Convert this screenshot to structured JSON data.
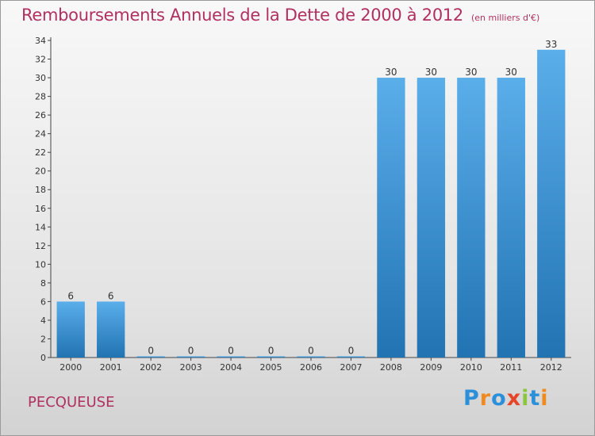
{
  "chart_data": {
    "type": "bar",
    "title": "Remboursements Annuels de la Dette de 2000 à 2012",
    "subtitle": "(en milliers d'€)",
    "categories": [
      "2000",
      "2001",
      "2002",
      "2003",
      "2004",
      "2005",
      "2006",
      "2007",
      "2008",
      "2009",
      "2010",
      "2011",
      "2012"
    ],
    "values": [
      6,
      6,
      0,
      0,
      0,
      0,
      0,
      0,
      30,
      30,
      30,
      30,
      33
    ],
    "ylim": [
      0,
      34
    ],
    "yticks": [
      0,
      2,
      4,
      6,
      8,
      10,
      12,
      14,
      16,
      18,
      20,
      22,
      24,
      26,
      28,
      30,
      32,
      34
    ],
    "xlabel": "",
    "ylabel": "",
    "grid": false,
    "bar_color_top": "#5aaeea",
    "bar_color_bottom": "#2173b2"
  },
  "footer": {
    "place_name": "PECQUEUSE",
    "logo_letters": [
      {
        "ch": "P",
        "color": "#2b8fd9"
      },
      {
        "ch": "r",
        "color": "#f08a1e"
      },
      {
        "ch": "o",
        "color": "#2b8fd9"
      },
      {
        "ch": "x",
        "color": "#e8442a"
      },
      {
        "ch": "i",
        "color": "#8cc63f"
      },
      {
        "ch": "t",
        "color": "#2b8fd9"
      },
      {
        "ch": "i",
        "color": "#f08a1e"
      }
    ]
  }
}
